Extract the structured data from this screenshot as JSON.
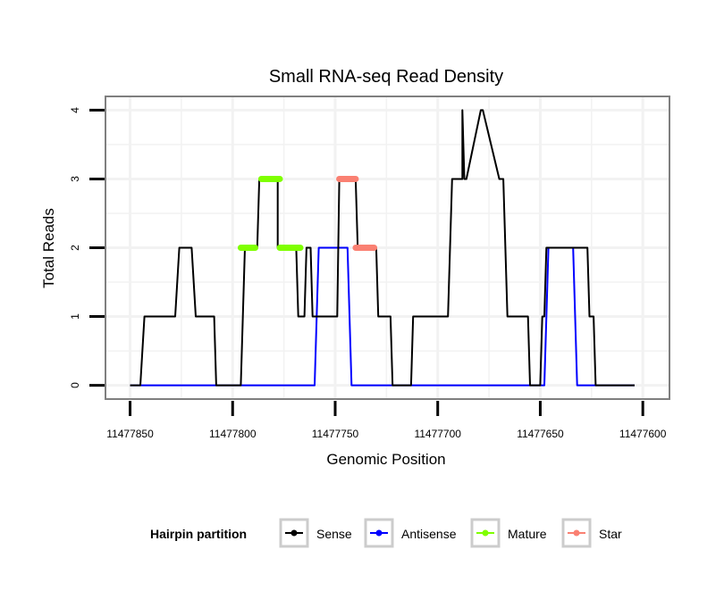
{
  "chart_data": {
    "type": "line",
    "title": "Small RNA-seq Read Density",
    "xlabel": "Genomic Position",
    "ylabel": "Total Reads",
    "x_reversed": true,
    "xlim": [
      11477862,
      11477587
    ],
    "ylim": [
      -0.2,
      4.2
    ],
    "x_ticks": [
      11477850,
      11477800,
      11477750,
      11477700,
      11477650,
      11477600
    ],
    "x_tick_labels": [
      "11477850",
      "11477800",
      "11477750",
      "11477700",
      "11477650",
      "11477600"
    ],
    "y_ticks": [
      0,
      1,
      2,
      3,
      4
    ],
    "y_tick_labels": [
      "0",
      "1",
      "2",
      "3",
      "4"
    ],
    "grid": true,
    "legend": {
      "title": "Hairpin partition",
      "position": "bottom",
      "entries": [
        {
          "label": "Sense",
          "color": "#000000"
        },
        {
          "label": "Antisense",
          "color": "#0000ff"
        },
        {
          "label": "Mature",
          "color": "#7fff00"
        },
        {
          "label": "Star",
          "color": "#fa8072"
        }
      ]
    },
    "series": [
      {
        "name": "Sense",
        "color": "#000000",
        "x": [
          11477850,
          11477845,
          11477843,
          11477828,
          11477826,
          11477820,
          11477818,
          11477809,
          11477808,
          11477796,
          11477795,
          11477795,
          11477794,
          11477788,
          11477787,
          11477778,
          11477778,
          11477769,
          11477768,
          11477765,
          11477764,
          11477762,
          11477761,
          11477749,
          11477748,
          11477740,
          11477739,
          11477730,
          11477729,
          11477723,
          11477722,
          11477713,
          11477712,
          11477695,
          11477693,
          11477688,
          11477688,
          11477687,
          11477686,
          11477679,
          11477678,
          11477670,
          11477668,
          11477666,
          11477656,
          11477655,
          11477650,
          11477649,
          11477648,
          11477647,
          11477627,
          11477626,
          11477624,
          11477623,
          11477604
        ],
        "y": [
          0,
          0,
          1,
          1,
          2,
          2,
          1,
          1,
          0,
          0,
          1,
          1,
          2,
          2,
          3,
          3,
          2,
          2,
          1,
          1,
          2,
          2,
          1,
          1,
          3,
          3,
          2,
          2,
          1,
          1,
          0,
          0,
          1,
          1,
          3,
          3,
          4,
          3,
          3,
          4,
          4,
          3,
          3,
          1,
          1,
          0,
          0,
          1,
          1,
          2,
          2,
          1,
          1,
          0,
          0
        ]
      },
      {
        "name": "Antisense",
        "color": "#0000ff",
        "x": [
          11477850,
          11477760,
          11477758,
          11477744,
          11477742,
          11477648,
          11477646,
          11477634,
          11477632,
          11477604
        ],
        "y": [
          0,
          0,
          2,
          2,
          0,
          0,
          2,
          2,
          0,
          0
        ]
      },
      {
        "name": "Mature",
        "color": "#7fff00",
        "segments": [
          {
            "x": [
              11477796,
              11477789
            ],
            "y": [
              2,
              2
            ]
          },
          {
            "x": [
              11477786,
              11477777
            ],
            "y": [
              3,
              3
            ]
          },
          {
            "x": [
              11477777,
              11477767
            ],
            "y": [
              2,
              2
            ]
          }
        ]
      },
      {
        "name": "Star",
        "color": "#fa8072",
        "segments": [
          {
            "x": [
              11477748,
              11477740
            ],
            "y": [
              3,
              3
            ]
          },
          {
            "x": [
              11477740,
              11477731
            ],
            "y": [
              2,
              2
            ]
          }
        ]
      }
    ]
  }
}
